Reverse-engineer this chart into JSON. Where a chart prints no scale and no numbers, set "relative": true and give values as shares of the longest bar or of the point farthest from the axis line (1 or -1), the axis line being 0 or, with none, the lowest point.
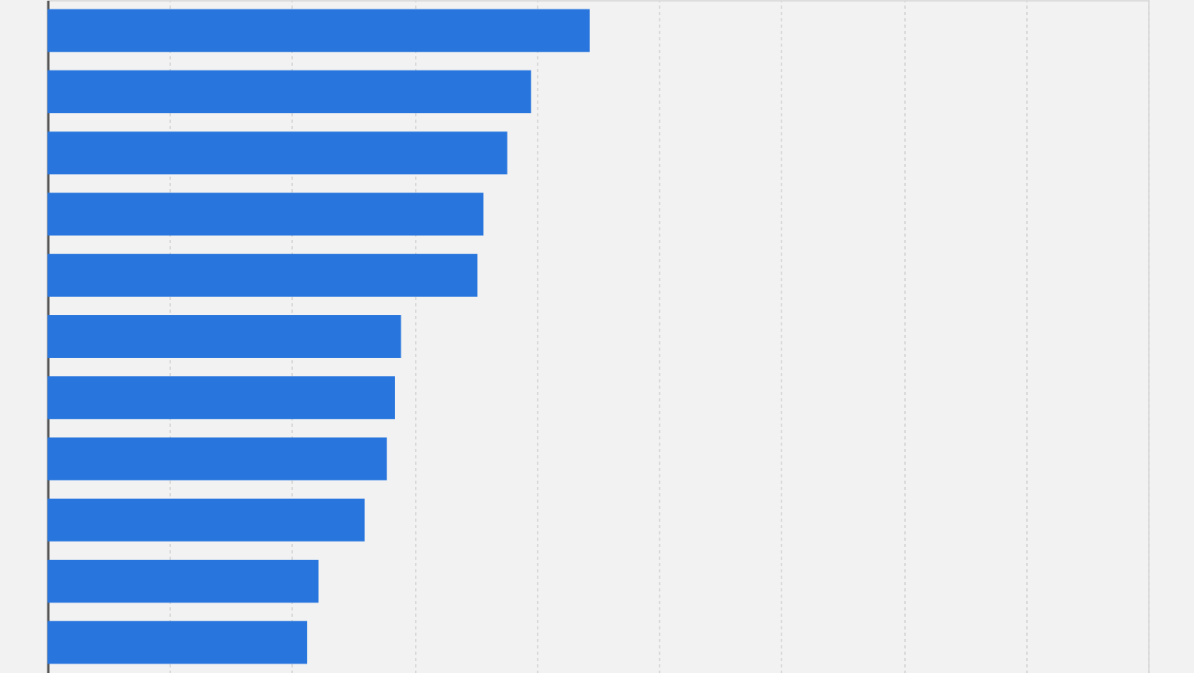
{
  "chart_data": {
    "type": "bar",
    "orientation": "horizontal",
    "relative": true,
    "categories": [
      null,
      null,
      null,
      null,
      null,
      null,
      null,
      null,
      null,
      null,
      null
    ],
    "values": [
      1,
      0.892,
      0.848,
      0.804,
      0.793,
      0.652,
      0.641,
      0.626,
      0.585,
      0.5,
      0.479
    ],
    "color": "#2876dd",
    "grid": "x"
  }
}
